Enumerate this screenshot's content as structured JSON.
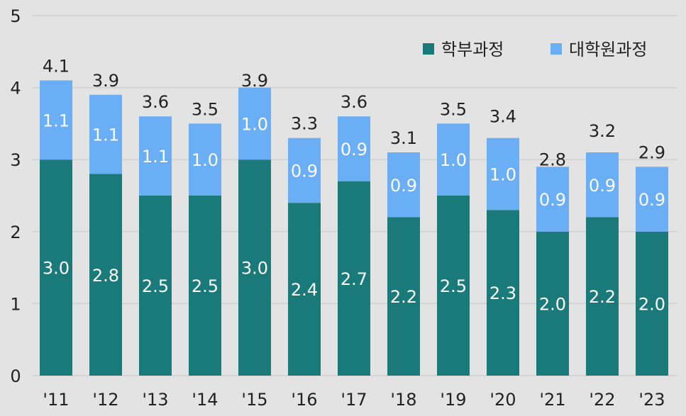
{
  "chart_data": {
    "type": "bar",
    "stacked": true,
    "categories": [
      "'11",
      "'12",
      "'13",
      "'14",
      "'15",
      "'16",
      "'17",
      "'18",
      "'19",
      "'20",
      "'21",
      "'22",
      "'23"
    ],
    "series": [
      {
        "name": "학부과정",
        "color": "#1a7a7a",
        "values": [
          3.0,
          2.8,
          2.5,
          2.5,
          3.0,
          2.4,
          2.7,
          2.2,
          2.5,
          2.3,
          2.0,
          2.2,
          2.0
        ]
      },
      {
        "name": "대학원과정",
        "color": "#6aaef5",
        "values": [
          1.1,
          1.1,
          1.1,
          1.0,
          1.0,
          0.9,
          0.9,
          0.9,
          1.0,
          1.0,
          0.9,
          0.9,
          0.9
        ]
      }
    ],
    "totals": [
      4.1,
      3.9,
      3.6,
      3.5,
      3.9,
      3.3,
      3.6,
      3.1,
      3.5,
      3.4,
      2.8,
      3.2,
      2.9
    ],
    "ylim": [
      0,
      5
    ],
    "yticks": [
      0,
      1,
      2,
      3,
      4,
      5
    ],
    "grid": true,
    "legend_position": "top-right",
    "title": "",
    "xlabel": "",
    "ylabel": ""
  }
}
